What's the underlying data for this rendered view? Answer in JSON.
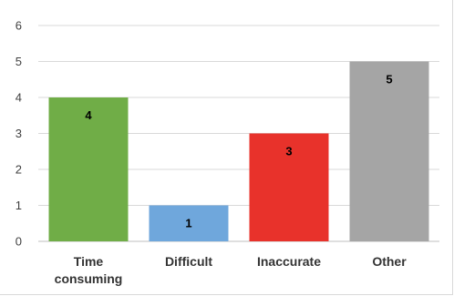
{
  "chart_data": {
    "type": "bar",
    "title": "",
    "xlabel": "",
    "ylabel": "",
    "categories": [
      [
        "Time",
        "consuming"
      ],
      [
        "Difficult"
      ],
      [
        "Inaccurate"
      ],
      [
        "Other"
      ]
    ],
    "values": [
      4,
      1,
      3,
      5
    ],
    "data_labels": [
      "4",
      "1",
      "3",
      "5"
    ],
    "colors": [
      "#70ad47",
      "#6fa7dc",
      "#e8322b",
      "#a5a5a5"
    ],
    "ylim": [
      0,
      6
    ],
    "yticks": [
      0,
      1,
      2,
      3,
      4,
      5,
      6
    ],
    "grid": true,
    "legend": "none"
  }
}
